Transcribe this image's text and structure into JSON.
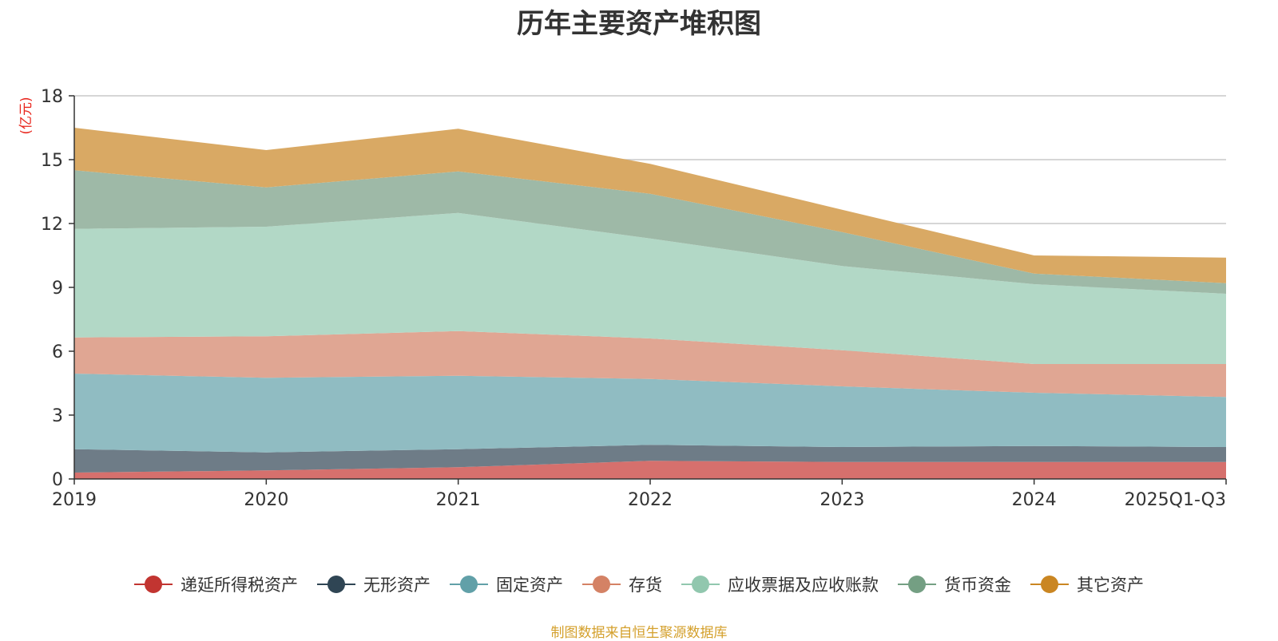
{
  "chart_data": {
    "type": "area",
    "stacked": true,
    "title": "历年主要资产堆积图",
    "ylabel": "(亿元)",
    "xlabel": "",
    "ylim": [
      0,
      18
    ],
    "yticks": [
      0,
      3,
      6,
      9,
      12,
      15,
      18
    ],
    "categories": [
      "2019",
      "2020",
      "2021",
      "2022",
      "2023",
      "2024",
      "2025Q1-Q3"
    ],
    "series": [
      {
        "name": "递延所得税资产",
        "color": "#c23531",
        "fill": "#d6706d",
        "values": [
          0.3,
          0.4,
          0.55,
          0.85,
          0.8,
          0.8,
          0.8
        ]
      },
      {
        "name": "无形资产",
        "color": "#2f4554",
        "fill": "#6e7c87",
        "values": [
          1.1,
          0.85,
          0.85,
          0.75,
          0.7,
          0.75,
          0.7
        ]
      },
      {
        "name": "固定资产",
        "color": "#61a0a8",
        "fill": "#90bcc2",
        "values": [
          3.55,
          3.5,
          3.45,
          3.1,
          2.85,
          2.5,
          2.35
        ]
      },
      {
        "name": "存货",
        "color": "#d48265",
        "fill": "#e0a693",
        "values": [
          1.7,
          1.95,
          2.1,
          1.9,
          1.7,
          1.35,
          1.55
        ]
      },
      {
        "name": "应收票据及应收账款",
        "color": "#91c7ae",
        "fill": "#b2d8c6",
        "values": [
          5.1,
          5.15,
          5.55,
          4.7,
          3.95,
          3.75,
          3.3
        ]
      },
      {
        "name": "货币资金",
        "color": "#749f83",
        "fill": "#9eb9a7",
        "values": [
          2.75,
          1.85,
          1.95,
          2.1,
          1.6,
          0.5,
          0.5
        ]
      },
      {
        "name": "其它资产",
        "color": "#ca8622",
        "fill": "#d9a964",
        "values": [
          2.0,
          1.75,
          2.0,
          1.4,
          1.05,
          0.85,
          1.2
        ]
      }
    ]
  },
  "source_note": "制图数据来自恒生聚源数据库"
}
